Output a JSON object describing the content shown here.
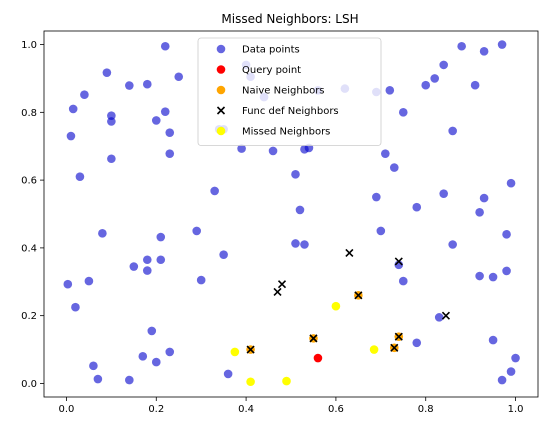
{
  "chart_data": {
    "type": "scatter",
    "title": "Missed Neighbors: LSH",
    "xlabel": "",
    "ylabel": "",
    "xlim": [
      -0.05,
      1.05
    ],
    "ylim": [
      -0.04,
      1.04
    ],
    "xticks": [
      "0.0",
      "0.2",
      "0.4",
      "0.6",
      "0.8",
      "1.0"
    ],
    "yticks": [
      "0.0",
      "0.2",
      "0.4",
      "0.6",
      "0.8",
      "1.0"
    ],
    "grid": false,
    "legend_position": "top-center",
    "series": [
      {
        "name": "Data points",
        "marker": "circle",
        "color": "#0000cc",
        "points": [
          [
            0.22,
            0.995
          ],
          [
            0.09,
            0.917
          ],
          [
            0.25,
            0.905
          ],
          [
            0.04,
            0.852
          ],
          [
            0.14,
            0.879
          ],
          [
            0.18,
            0.883
          ],
          [
            0.015,
            0.81
          ],
          [
            0.1,
            0.79
          ],
          [
            0.1,
            0.773
          ],
          [
            0.22,
            0.802
          ],
          [
            0.2,
            0.776
          ],
          [
            0.23,
            0.74
          ],
          [
            0.01,
            0.73
          ],
          [
            0.23,
            0.678
          ],
          [
            0.1,
            0.663
          ],
          [
            0.03,
            0.61
          ],
          [
            0.34,
            0.75
          ],
          [
            0.35,
            0.75
          ],
          [
            0.39,
            0.693
          ],
          [
            0.46,
            0.686
          ],
          [
            0.53,
            0.691
          ],
          [
            0.54,
            0.695
          ],
          [
            0.4,
            0.94
          ],
          [
            0.41,
            0.905
          ],
          [
            0.44,
            0.845
          ],
          [
            0.56,
            0.865
          ],
          [
            0.62,
            0.87
          ],
          [
            0.72,
            0.865
          ],
          [
            0.75,
            0.8
          ],
          [
            0.69,
            0.86
          ],
          [
            0.8,
            0.88
          ],
          [
            0.82,
            0.9
          ],
          [
            0.84,
            0.94
          ],
          [
            0.88,
            0.995
          ],
          [
            0.93,
            0.98
          ],
          [
            0.97,
            1.0
          ],
          [
            0.91,
            0.88
          ],
          [
            0.86,
            0.745
          ],
          [
            0.71,
            0.678
          ],
          [
            0.73,
            0.637
          ],
          [
            0.51,
            0.617
          ],
          [
            0.33,
            0.568
          ],
          [
            0.69,
            0.55
          ],
          [
            0.78,
            0.52
          ],
          [
            0.84,
            0.56
          ],
          [
            0.93,
            0.547
          ],
          [
            0.99,
            0.591
          ],
          [
            0.92,
            0.505
          ],
          [
            0.52,
            0.512
          ],
          [
            0.08,
            0.443
          ],
          [
            0.21,
            0.432
          ],
          [
            0.29,
            0.45
          ],
          [
            0.7,
            0.45
          ],
          [
            0.86,
            0.41
          ],
          [
            0.98,
            0.44
          ],
          [
            0.51,
            0.413
          ],
          [
            0.53,
            0.41
          ],
          [
            0.35,
            0.38
          ],
          [
            0.18,
            0.365
          ],
          [
            0.21,
            0.365
          ],
          [
            0.15,
            0.345
          ],
          [
            0.18,
            0.333
          ],
          [
            0.05,
            0.302
          ],
          [
            0.003,
            0.293
          ],
          [
            0.3,
            0.305
          ],
          [
            0.74,
            0.35
          ],
          [
            0.75,
            0.302
          ],
          [
            0.92,
            0.317
          ],
          [
            0.95,
            0.314
          ],
          [
            0.98,
            0.332
          ],
          [
            0.02,
            0.225
          ],
          [
            0.19,
            0.155
          ],
          [
            0.17,
            0.08
          ],
          [
            0.2,
            0.063
          ],
          [
            0.23,
            0.093
          ],
          [
            0.06,
            0.052
          ],
          [
            0.07,
            0.013
          ],
          [
            0.14,
            0.01
          ],
          [
            0.36,
            0.028
          ],
          [
            0.78,
            0.12
          ],
          [
            0.83,
            0.195
          ],
          [
            0.95,
            0.128
          ],
          [
            0.97,
            0.01
          ],
          [
            0.99,
            0.035
          ],
          [
            1.0,
            0.075
          ]
        ]
      },
      {
        "name": "Query point",
        "marker": "circle",
        "color": "#ff0000",
        "points": [
          [
            0.56,
            0.075
          ]
        ]
      },
      {
        "name": "Naive Neighbors",
        "marker": "circle",
        "color": "#ffa500",
        "points": [
          [
            0.41,
            0.1
          ],
          [
            0.55,
            0.133
          ],
          [
            0.65,
            0.26
          ],
          [
            0.73,
            0.105
          ],
          [
            0.74,
            0.138
          ]
        ]
      },
      {
        "name": "Func def Neighbors",
        "marker": "x",
        "color": "#000000",
        "points": [
          [
            0.41,
            0.1
          ],
          [
            0.47,
            0.27
          ],
          [
            0.48,
            0.293
          ],
          [
            0.55,
            0.133
          ],
          [
            0.63,
            0.385
          ],
          [
            0.65,
            0.26
          ],
          [
            0.73,
            0.105
          ],
          [
            0.74,
            0.138
          ],
          [
            0.74,
            0.36
          ],
          [
            0.845,
            0.2
          ]
        ]
      },
      {
        "name": "Missed Neighbors",
        "marker": "circle",
        "color": "#ffff00",
        "points": [
          [
            0.375,
            0.093
          ],
          [
            0.41,
            0.005
          ],
          [
            0.49,
            0.007
          ],
          [
            0.6,
            0.228
          ],
          [
            0.685,
            0.1
          ]
        ]
      }
    ]
  }
}
